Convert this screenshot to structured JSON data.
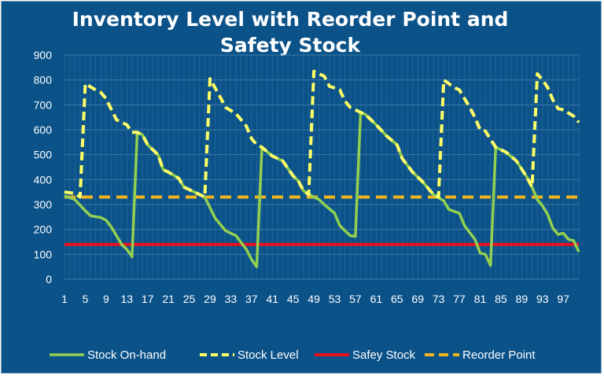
{
  "chart_data": {
    "type": "line",
    "title_line1": "Inventory Level with Reorder Point and",
    "title_line2": "Safety Stock",
    "xlabel": "",
    "ylabel": "",
    "ylim": [
      0,
      900
    ],
    "xlim": [
      1,
      100
    ],
    "yticks": [
      0,
      100,
      200,
      300,
      400,
      500,
      600,
      700,
      800,
      900
    ],
    "xticks": [
      1,
      5,
      9,
      13,
      17,
      21,
      25,
      29,
      33,
      37,
      41,
      45,
      49,
      53,
      57,
      61,
      65,
      69,
      73,
      77,
      81,
      85,
      89,
      93,
      97
    ],
    "grid": true,
    "legend_position": "bottom",
    "series": [
      {
        "name": "Stock On-hand",
        "color": "#92d050",
        "style": "solid",
        "points": [
          [
            1,
            335
          ],
          [
            3,
            320
          ],
          [
            5,
            275
          ],
          [
            6,
            255
          ],
          [
            8,
            248
          ],
          [
            9,
            237
          ],
          [
            10,
            210
          ],
          [
            12,
            140
          ],
          [
            13,
            120
          ],
          [
            14,
            90
          ],
          [
            15,
            590
          ],
          [
            16,
            580
          ],
          [
            17,
            540
          ],
          [
            19,
            500
          ],
          [
            20,
            440
          ],
          [
            21,
            430
          ],
          [
            23,
            405
          ],
          [
            24,
            370
          ],
          [
            25,
            360
          ],
          [
            27,
            340
          ],
          [
            28,
            330
          ],
          [
            30,
            245
          ],
          [
            32,
            195
          ],
          [
            34,
            175
          ],
          [
            36,
            120
          ],
          [
            37,
            80
          ],
          [
            38,
            50
          ],
          [
            39,
            530
          ],
          [
            41,
            495
          ],
          [
            43,
            475
          ],
          [
            45,
            415
          ],
          [
            46,
            395
          ],
          [
            47,
            355
          ],
          [
            49,
            330
          ],
          [
            50,
            320
          ],
          [
            51,
            300
          ],
          [
            53,
            265
          ],
          [
            54,
            215
          ],
          [
            55,
            195
          ],
          [
            56,
            175
          ],
          [
            57,
            172
          ],
          [
            58,
            670
          ],
          [
            59,
            660
          ],
          [
            61,
            620
          ],
          [
            63,
            575
          ],
          [
            65,
            540
          ],
          [
            66,
            485
          ],
          [
            68,
            430
          ],
          [
            70,
            390
          ],
          [
            72,
            340
          ],
          [
            74,
            315
          ],
          [
            75,
            280
          ],
          [
            77,
            265
          ],
          [
            78,
            215
          ],
          [
            80,
            160
          ],
          [
            81,
            105
          ],
          [
            82,
            100
          ],
          [
            83,
            55
          ],
          [
            84,
            530
          ],
          [
            86,
            510
          ],
          [
            88,
            475
          ],
          [
            90,
            410
          ],
          [
            91,
            370
          ],
          [
            92,
            320
          ],
          [
            93,
            295
          ],
          [
            94,
            260
          ],
          [
            95,
            205
          ],
          [
            96,
            180
          ],
          [
            97,
            185
          ],
          [
            98,
            160
          ],
          [
            99,
            155
          ],
          [
            100,
            110
          ]
        ]
      },
      {
        "name": "Stock Level",
        "color": "#ffff66",
        "style": "dashed",
        "points": [
          [
            1,
            350
          ],
          [
            3,
            345
          ],
          [
            4,
            330
          ],
          [
            5,
            785
          ],
          [
            7,
            760
          ],
          [
            8,
            750
          ],
          [
            9,
            725
          ],
          [
            11,
            640
          ],
          [
            13,
            620
          ],
          [
            14,
            590
          ],
          [
            15,
            590
          ],
          [
            16,
            580
          ],
          [
            17,
            540
          ],
          [
            19,
            500
          ],
          [
            20,
            440
          ],
          [
            21,
            430
          ],
          [
            23,
            405
          ],
          [
            24,
            370
          ],
          [
            25,
            360
          ],
          [
            27,
            340
          ],
          [
            28,
            330
          ],
          [
            29,
            805
          ],
          [
            31,
            730
          ],
          [
            32,
            690
          ],
          [
            34,
            665
          ],
          [
            36,
            615
          ],
          [
            37,
            565
          ],
          [
            38,
            540
          ],
          [
            39,
            530
          ],
          [
            41,
            495
          ],
          [
            43,
            475
          ],
          [
            45,
            415
          ],
          [
            46,
            395
          ],
          [
            47,
            355
          ],
          [
            48,
            340
          ],
          [
            49,
            835
          ],
          [
            51,
            815
          ],
          [
            52,
            775
          ],
          [
            54,
            760
          ],
          [
            55,
            715
          ],
          [
            56,
            690
          ],
          [
            58,
            670
          ],
          [
            59,
            660
          ],
          [
            61,
            620
          ],
          [
            63,
            575
          ],
          [
            65,
            540
          ],
          [
            66,
            485
          ],
          [
            68,
            430
          ],
          [
            70,
            390
          ],
          [
            72,
            340
          ],
          [
            73,
            330
          ],
          [
            74,
            800
          ],
          [
            76,
            770
          ],
          [
            77,
            760
          ],
          [
            79,
            690
          ],
          [
            80,
            650
          ],
          [
            81,
            600
          ],
          [
            82,
            595
          ],
          [
            84,
            530
          ],
          [
            86,
            510
          ],
          [
            88,
            475
          ],
          [
            90,
            410
          ],
          [
            91,
            370
          ],
          [
            92,
            825
          ],
          [
            93,
            800
          ],
          [
            94,
            770
          ],
          [
            95,
            720
          ],
          [
            96,
            685
          ],
          [
            97,
            680
          ],
          [
            99,
            655
          ],
          [
            100,
            630
          ]
        ]
      },
      {
        "name": "Safey Stock",
        "color": "#e8121e",
        "style": "solid-thick",
        "points": [
          [
            1,
            140
          ],
          [
            100,
            140
          ]
        ]
      },
      {
        "name": "Reorder Point",
        "color": "#f0b41e",
        "style": "dashed-long",
        "points": [
          [
            1,
            330
          ],
          [
            100,
            330
          ]
        ]
      }
    ]
  }
}
